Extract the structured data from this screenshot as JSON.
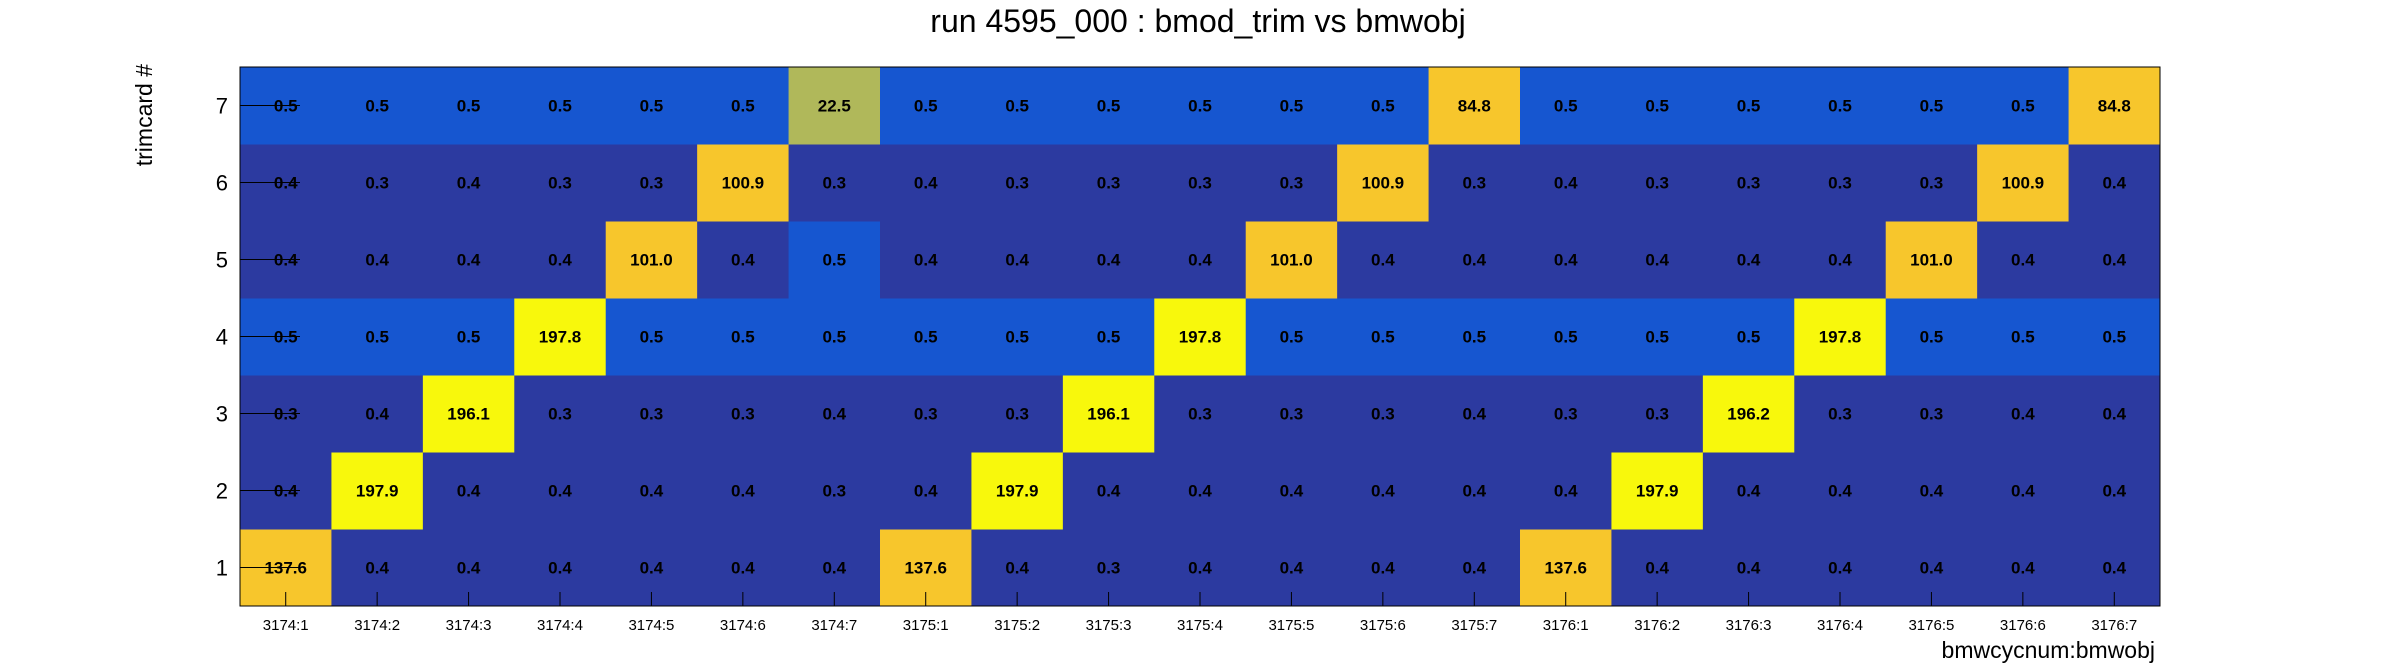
{
  "chart_data": {
    "type": "heatmap",
    "title": "run 4595_000 : bmod_trim vs bmwobj",
    "xlabel": "bmwcycnum:bmwobj",
    "ylabel": "trimcard #",
    "x_categories": [
      "3174:1",
      "3174:2",
      "3174:3",
      "3174:4",
      "3174:5",
      "3174:6",
      "3174:7",
      "3175:1",
      "3175:2",
      "3175:3",
      "3175:4",
      "3175:5",
      "3175:6",
      "3175:7",
      "3176:1",
      "3176:2",
      "3176:3",
      "3176:4",
      "3176:5",
      "3176:6",
      "3176:7"
    ],
    "y_categories": [
      "1",
      "2",
      "3",
      "4",
      "5",
      "6",
      "7"
    ],
    "values": [
      [
        "137.6",
        "0.4",
        "0.4",
        "0.4",
        "0.4",
        "0.4",
        "0.4",
        "137.6",
        "0.4",
        "0.3",
        "0.4",
        "0.4",
        "0.4",
        "0.4",
        "137.6",
        "0.4",
        "0.4",
        "0.4",
        "0.4",
        "0.4",
        "0.4"
      ],
      [
        "0.4",
        "197.9",
        "0.4",
        "0.4",
        "0.4",
        "0.4",
        "0.3",
        "0.4",
        "197.9",
        "0.4",
        "0.4",
        "0.4",
        "0.4",
        "0.4",
        "0.4",
        "197.9",
        "0.4",
        "0.4",
        "0.4",
        "0.4",
        "0.4"
      ],
      [
        "0.3",
        "0.4",
        "196.1",
        "0.3",
        "0.3",
        "0.3",
        "0.4",
        "0.3",
        "0.3",
        "196.1",
        "0.3",
        "0.3",
        "0.3",
        "0.4",
        "0.3",
        "0.3",
        "196.2",
        "0.3",
        "0.3",
        "0.4",
        "0.4"
      ],
      [
        "0.5",
        "0.5",
        "0.5",
        "197.8",
        "0.5",
        "0.5",
        "0.5",
        "0.5",
        "0.5",
        "0.5",
        "197.8",
        "0.5",
        "0.5",
        "0.5",
        "0.5",
        "0.5",
        "0.5",
        "197.8",
        "0.5",
        "0.5",
        "0.5"
      ],
      [
        "0.4",
        "0.4",
        "0.4",
        "0.4",
        "101.0",
        "0.4",
        "0.5",
        "0.4",
        "0.4",
        "0.4",
        "0.4",
        "101.0",
        "0.4",
        "0.4",
        "0.4",
        "0.4",
        "0.4",
        "0.4",
        "101.0",
        "0.4",
        "0.4"
      ],
      [
        "0.4",
        "0.3",
        "0.4",
        "0.3",
        "0.3",
        "100.9",
        "0.3",
        "0.4",
        "0.3",
        "0.3",
        "0.3",
        "0.3",
        "100.9",
        "0.3",
        "0.4",
        "0.3",
        "0.3",
        "0.3",
        "0.3",
        "100.9",
        "0.4"
      ],
      [
        "0.5",
        "0.5",
        "0.5",
        "0.5",
        "0.5",
        "0.5",
        "22.5",
        "0.5",
        "0.5",
        "0.5",
        "0.5",
        "0.5",
        "0.5",
        "84.8",
        "0.5",
        "0.5",
        "0.5",
        "0.5",
        "0.5",
        "0.5",
        "84.8"
      ]
    ],
    "colors": {
      "level_0_3": "#2c3aa0",
      "level_0_4": "#2c3aa0",
      "level_0_5": "#1656d0",
      "mid": "#b0b85a",
      "high": "#f7c62c",
      "max": "#f8f80c"
    },
    "grid": false,
    "legend": "none"
  }
}
